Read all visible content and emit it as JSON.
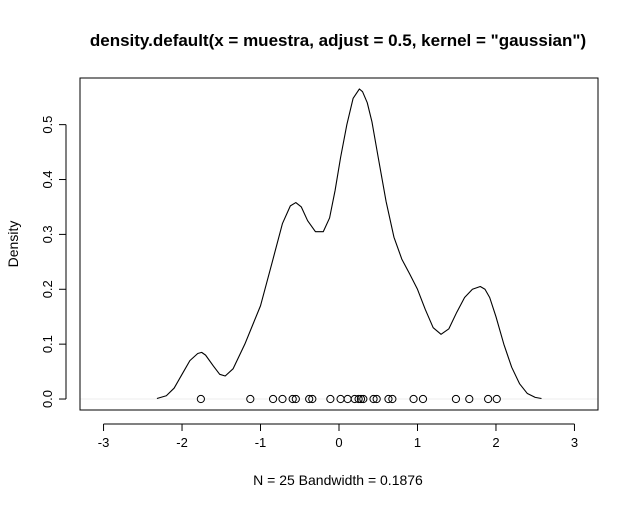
{
  "chart_data": {
    "type": "line",
    "title": "density.default(x = muestra, adjust = 0.5, kernel = \"gaussian\")",
    "xlabel": "N = 25   Bandwidth = 0.1876",
    "ylabel": "Density",
    "xlim": [
      -3.3,
      3.3
    ],
    "ylim": [
      -0.02,
      0.585
    ],
    "grid": false,
    "x_ticks": [
      -3,
      -2,
      -1,
      0,
      1,
      2,
      3
    ],
    "x_tick_labels": [
      "-3",
      "-2",
      "-1",
      "0",
      "1",
      "2",
      "3"
    ],
    "y_ticks": [
      0.0,
      0.1,
      0.2,
      0.3,
      0.4,
      0.5
    ],
    "y_tick_labels": [
      "0.0",
      "0.1",
      "0.2",
      "0.3",
      "0.4",
      "0.5"
    ],
    "zero_line": 0,
    "zero_line_color": "#eeeeee",
    "line_color": "#000000",
    "series": [
      {
        "x": [
          -2.32,
          -2.2,
          -2.1,
          -2.0,
          -1.9,
          -1.8,
          -1.75,
          -1.7,
          -1.6,
          -1.52,
          -1.45,
          -1.35,
          -1.2,
          -1.0,
          -0.85,
          -0.72,
          -0.62,
          -0.55,
          -0.48,
          -0.4,
          -0.3,
          -0.2,
          -0.12,
          -0.05,
          0.02,
          0.1,
          0.18,
          0.26,
          0.3,
          0.36,
          0.42,
          0.5,
          0.6,
          0.7,
          0.8,
          0.9,
          1.0,
          1.1,
          1.2,
          1.3,
          1.4,
          1.5,
          1.6,
          1.7,
          1.8,
          1.86,
          1.92,
          2.0,
          2.1,
          2.2,
          2.3,
          2.4,
          2.5,
          2.58
        ],
        "y": [
          0.001,
          0.006,
          0.02,
          0.045,
          0.07,
          0.083,
          0.085,
          0.08,
          0.06,
          0.045,
          0.042,
          0.055,
          0.1,
          0.17,
          0.25,
          0.32,
          0.352,
          0.358,
          0.35,
          0.325,
          0.305,
          0.305,
          0.33,
          0.38,
          0.44,
          0.5,
          0.548,
          0.565,
          0.56,
          0.54,
          0.505,
          0.44,
          0.36,
          0.295,
          0.255,
          0.228,
          0.2,
          0.163,
          0.13,
          0.118,
          0.128,
          0.158,
          0.185,
          0.2,
          0.205,
          0.2,
          0.185,
          0.15,
          0.1,
          0.058,
          0.028,
          0.01,
          0.003,
          0.001
        ]
      }
    ],
    "rug_points": [
      -1.76,
      -1.13,
      -0.84,
      -0.72,
      -0.59,
      -0.55,
      -0.38,
      -0.34,
      -0.11,
      0.02,
      0.11,
      0.2,
      0.25,
      0.28,
      0.31,
      0.44,
      0.48,
      0.63,
      0.68,
      0.95,
      1.07,
      1.49,
      1.66,
      1.9,
      2.01
    ]
  }
}
